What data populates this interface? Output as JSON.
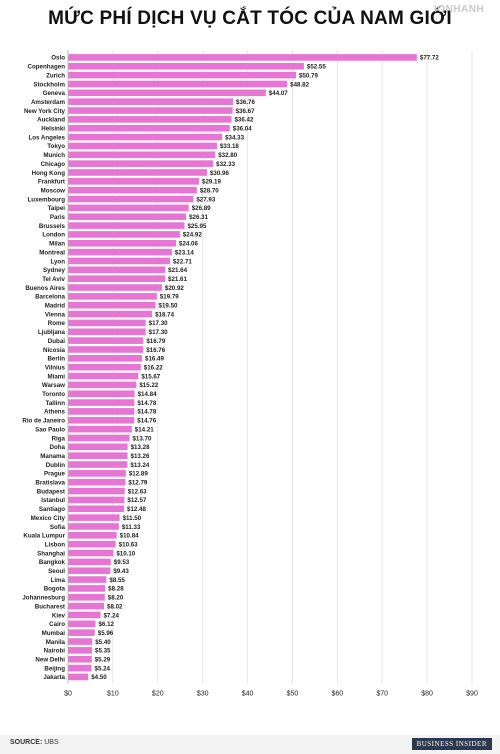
{
  "page": {
    "title": "MỨC PHÍ DỊCH VỤ CẮT TÓC CỦA NAM GIỚI",
    "watermark": "IONHANH",
    "source_label": "SOURCE:",
    "source_value": "UBS",
    "brand": "BUSINESS INSIDER"
  },
  "colors": {
    "bar": "#e675d3",
    "grid": "#e6e6e6",
    "text": "#222222"
  },
  "chart_data": {
    "type": "bar",
    "orientation": "horizontal",
    "title": "MỨC PHÍ DỊCH VỤ CẮT TÓC CỦA NAM GIỚI",
    "xlabel": "",
    "ylabel": "",
    "xlim": [
      0,
      90
    ],
    "xticks": [
      "$0",
      "$10",
      "$20",
      "$30",
      "$40",
      "$50",
      "$60",
      "$70",
      "$80",
      "$90"
    ],
    "grid": true,
    "categories": [
      "Oslo",
      "Copenhagen",
      "Zurich",
      "Stockholm",
      "Geneva",
      "Amsterdam",
      "New York City",
      "Auckland",
      "Helsinki",
      "Los Angeles",
      "Tokyo",
      "Munich",
      "Chicago",
      "Hong Kong",
      "Frankfurt",
      "Moscow",
      "Luxembourg",
      "Taipei",
      "Paris",
      "Brussels",
      "London",
      "Milan",
      "Montreal",
      "Lyon",
      "Sydney",
      "Tel Aviv",
      "Buenos Aires",
      "Barcelona",
      "Madrid",
      "Vienna",
      "Rome",
      "Ljubljana",
      "Dubai",
      "Nicosia",
      "Berlin",
      "Vilnius",
      "Miami",
      "Warsaw",
      "Toronto",
      "Tallinn",
      "Athens",
      "Rio de Janeiro",
      "Sao Paulo",
      "Riga",
      "Doha",
      "Manama",
      "Dublin",
      "Prague",
      "Bratislava",
      "Budapest",
      "Istanbul",
      "Santiago",
      "Mexico City",
      "Sofia",
      "Kuala Lumpur",
      "Lisbon",
      "Shanghai",
      "Bangkok",
      "Seoul",
      "Lima",
      "Bogota",
      "Johannesburg",
      "Bucharest",
      "Kiev",
      "Cairo",
      "Mumbai",
      "Manila",
      "Nairobi",
      "New Delhi",
      "Beijing",
      "Jakarta"
    ],
    "values": [
      77.72,
      52.55,
      50.79,
      48.82,
      44.07,
      36.76,
      36.67,
      36.42,
      36.04,
      34.33,
      33.18,
      32.8,
      32.33,
      30.96,
      29.19,
      28.7,
      27.93,
      26.89,
      26.31,
      25.95,
      24.92,
      24.06,
      23.14,
      22.71,
      21.64,
      21.61,
      20.92,
      19.79,
      19.5,
      18.74,
      17.3,
      17.3,
      16.79,
      16.76,
      16.49,
      16.22,
      15.67,
      15.22,
      14.84,
      14.78,
      14.78,
      14.76,
      14.21,
      13.7,
      13.28,
      13.26,
      13.24,
      12.89,
      12.79,
      12.63,
      12.57,
      12.48,
      11.5,
      11.33,
      10.84,
      10.63,
      10.1,
      9.53,
      9.43,
      8.55,
      8.28,
      8.2,
      8.02,
      7.24,
      6.12,
      5.96,
      5.4,
      5.35,
      5.29,
      5.24,
      4.5
    ],
    "value_labels": [
      "$77.72",
      "$52.55",
      "$50.79",
      "$48.82",
      "$44.07",
      "$36.76",
      "$36.67",
      "$36.42",
      "$36.04",
      "$34.33",
      "$33.18",
      "$32.80",
      "$32.33",
      "$30.96",
      "$29.19",
      "$28.70",
      "$27.93",
      "$26.89",
      "$26.31",
      "$25.95",
      "$24.92",
      "$24.06",
      "$23.14",
      "$22.71",
      "$21.64",
      "$21.61",
      "$20.92",
      "$19.79",
      "$19.50",
      "$18.74",
      "$17.30",
      "$17.30",
      "$16.79",
      "$16.76",
      "$16.49",
      "$16.22",
      "$15.67",
      "$15.22",
      "$14.84",
      "$14.78",
      "$14.78",
      "$14.76",
      "$14.21",
      "$13.70",
      "$13.28",
      "$13.26",
      "$13.24",
      "$12.89",
      "$12.79",
      "$12.63",
      "$12.57",
      "$12.48",
      "$11.50",
      "$11.33",
      "$10.84",
      "$10.63",
      "$10.10",
      "$9.53",
      "$9.43",
      "$8.55",
      "$8.28",
      "$8.20",
      "$8.02",
      "$7.24",
      "$6.12",
      "$5.96",
      "$5.40",
      "$5.35",
      "$5.29",
      "$5.24",
      "$4.50"
    ]
  }
}
